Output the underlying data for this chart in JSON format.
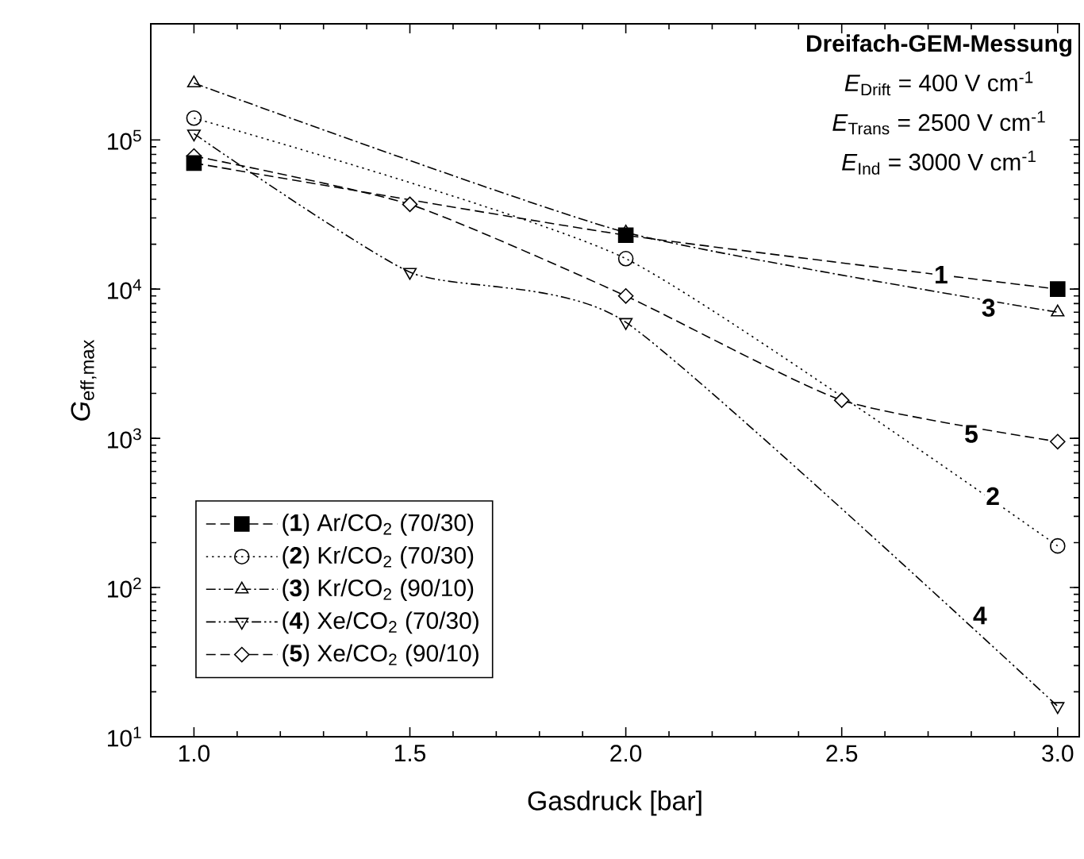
{
  "chart_data": {
    "type": "line",
    "xlabel": "Gasdruck [bar]",
    "ylabel": "*G*$_{eff,max}$",
    "log": "y",
    "xlim": [
      0.9,
      3.05
    ],
    "ylim": [
      10,
      600000
    ],
    "xticks": [
      {
        "value": 1.0,
        "label": "1.0"
      },
      {
        "value": 1.5,
        "label": "1.5"
      },
      {
        "value": 2.0,
        "label": "2.0"
      },
      {
        "value": 2.5,
        "label": "2.5"
      },
      {
        "value": 3.0,
        "label": "3.0"
      }
    ],
    "yticks": [
      {
        "value": 10,
        "label": "10$^{1}$"
      },
      {
        "value": 100,
        "label": "10$^{2}$"
      },
      {
        "value": 1000,
        "label": "10$^{3}$"
      },
      {
        "value": 10000,
        "label": "10$^{4}$"
      },
      {
        "value": 100000,
        "label": "10$^{5}$"
      }
    ],
    "grid": false,
    "legend": "bottom left",
    "series": [
      {
        "name": "(**1**)  Ar/CO$_{2}$ (70/30)",
        "color": "#000000",
        "marker": "square",
        "line_style": "dashed",
        "x": [
          1.0,
          2.0,
          3.0
        ],
        "values": [
          70000,
          23000,
          10000
        ]
      },
      {
        "name": "(**2**)  Kr/CO$_{2}$ (70/30)",
        "color": "#000000",
        "marker": "circle",
        "line_style": "dotted",
        "x": [
          1.0,
          2.0,
          3.0
        ],
        "values": [
          140000,
          16000,
          190
        ]
      },
      {
        "name": "(**3**)  Kr/CO$_{2}$ (90/10)",
        "color": "#000000",
        "marker": "triangle",
        "line_style": "dashdot",
        "x": [
          1.0,
          2.0,
          3.0
        ],
        "values": [
          240000,
          24000,
          7000
        ]
      },
      {
        "name": "(**4**)  Xe/CO$_{2}$ (70/30)",
        "color": "#000000",
        "marker": "triangle-down",
        "line_style": "dashdotdot",
        "x": [
          1.0,
          1.5,
          2.0,
          3.0
        ],
        "values": [
          110000,
          13000,
          6000,
          16
        ]
      },
      {
        "name": "(**5**)  Xe/CO$_{2}$ (90/10)",
        "color": "#000000",
        "marker": "diamond",
        "line_style": "dashed",
        "x": [
          1.0,
          1.5,
          2.0,
          2.5,
          3.0
        ],
        "values": [
          78000,
          37000,
          9000,
          1800,
          950
        ]
      }
    ],
    "annotations": [
      "**Dreifach-GEM-Messung**",
      "*E*$_{Drift}$ = 400 V cm$^{-1}$",
      "*E*$_{Trans}$ = 2500 V cm$^{-1}$",
      "*E*$_{Ind}$ = 3000 V cm$^{-1}$",
      {
        "text": "**1**",
        "x": 2.73,
        "y": 12500
      },
      {
        "text": "**3**",
        "x": 2.84,
        "y": 7500
      },
      {
        "text": "**5**",
        "x": 2.8,
        "y": 1070
      },
      {
        "text": "**2**",
        "x": 2.85,
        "y": 410
      },
      {
        "text": "**4**",
        "x": 2.82,
        "y": 65
      }
    ]
  }
}
